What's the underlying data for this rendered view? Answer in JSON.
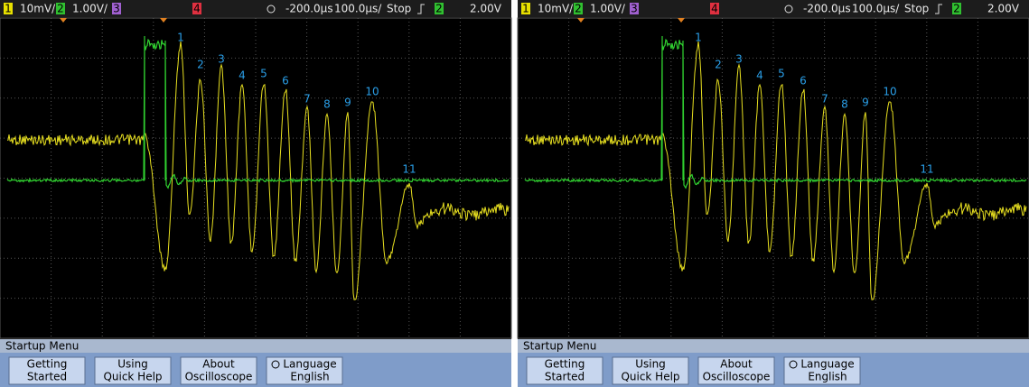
{
  "screens": [
    {
      "status": {
        "ch1": "1",
        "ch1_scale": "10mV/",
        "ch2": "2",
        "ch2_scale": "1.00V/",
        "ch3": "3",
        "ch4": "4",
        "delay": "-200.0µs",
        "timebase": "100.0µs/",
        "run_state": "Stop",
        "trigger_source": "2",
        "trigger_level": "2.00V"
      },
      "peak_labels": [
        "1",
        "2",
        "3",
        "4",
        "5",
        "6",
        "7",
        "8",
        "9",
        "10",
        "11"
      ],
      "menu": {
        "title": "Startup Menu",
        "buttons": [
          [
            "Getting",
            "Started"
          ],
          [
            "Using",
            "Quick Help"
          ],
          [
            "About",
            "Oscilloscope"
          ],
          [
            "Language",
            "English"
          ]
        ]
      }
    },
    {
      "status": {
        "ch1": "1",
        "ch1_scale": "10mV/",
        "ch2": "2",
        "ch2_scale": "1.00V/",
        "ch3": "3",
        "ch4": "4",
        "delay": "-200.0µs",
        "timebase": "100.0µs/",
        "run_state": "Stop",
        "trigger_source": "2",
        "trigger_level": "2.00V"
      },
      "peak_labels": [
        "1",
        "2",
        "3",
        "4",
        "5",
        "6",
        "7",
        "8",
        "9",
        "10",
        "11"
      ],
      "menu": {
        "title": "Startup Menu",
        "buttons": [
          [
            "Getting",
            "Started"
          ],
          [
            "Using",
            "Quick Help"
          ],
          [
            "About",
            "Oscilloscope"
          ],
          [
            "Language",
            "English"
          ]
        ]
      }
    }
  ]
}
